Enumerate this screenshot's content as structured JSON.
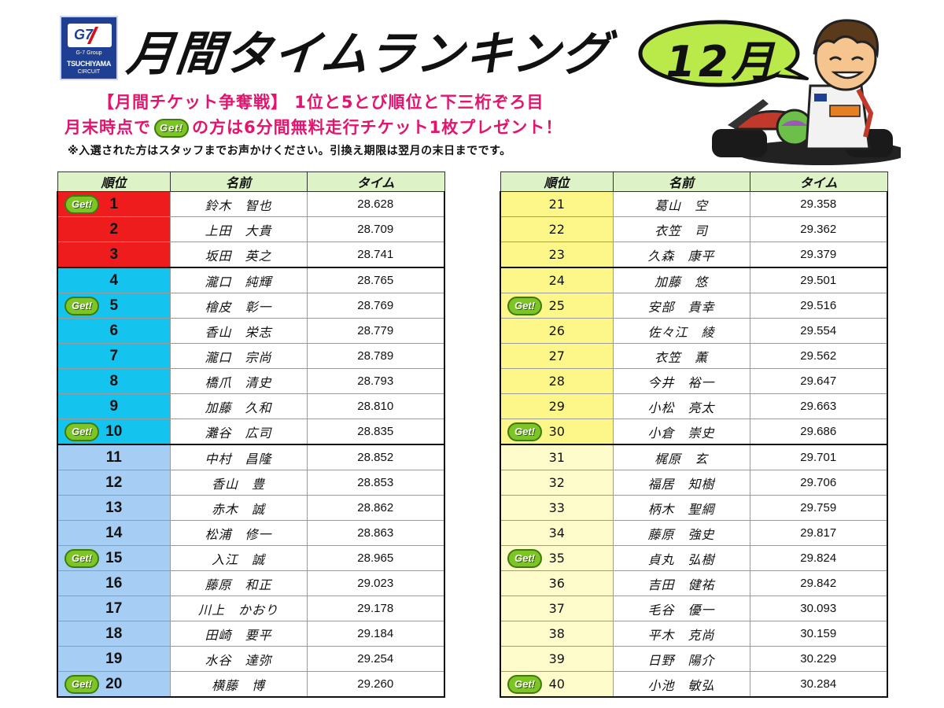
{
  "logo": {
    "group": "G-7 Group",
    "name": "TSUCHIYAMA",
    "circuit": "CIRCUIT",
    "mark": "G7"
  },
  "title": "月間タイムランキング",
  "month": "12月",
  "info": {
    "line1": "【月間チケット争奪戦】 1位と5とび順位と下三桁ぞろ目",
    "line2_before": "月末時点で",
    "line2_after": "の方は6分間無料走行チケット1枚プレゼント！",
    "line3": "※入選された方はスタッフまでお声かけください。引換え期限は翌月の末日までです。"
  },
  "badge_label": "Get!",
  "headers": {
    "rank": "順位",
    "name": "名前",
    "time": "タイム"
  },
  "left_rows": [
    {
      "rank": "1",
      "name": "鈴木　智也",
      "time": "28.628",
      "get": true
    },
    {
      "rank": "2",
      "name": "上田　大貴",
      "time": "28.709",
      "get": false
    },
    {
      "rank": "3",
      "name": "坂田　英之",
      "time": "28.741",
      "get": false
    },
    {
      "rank": "4",
      "name": "瀧口　純輝",
      "time": "28.765",
      "get": false
    },
    {
      "rank": "5",
      "name": "檜皮　彰一",
      "time": "28.769",
      "get": true
    },
    {
      "rank": "6",
      "name": "香山　栄志",
      "time": "28.779",
      "get": false
    },
    {
      "rank": "7",
      "name": "瀧口　宗尚",
      "time": "28.789",
      "get": false
    },
    {
      "rank": "8",
      "name": "橋爪　清史",
      "time": "28.793",
      "get": false
    },
    {
      "rank": "9",
      "name": "加藤　久和",
      "time": "28.810",
      "get": false
    },
    {
      "rank": "10",
      "name": "灘谷　広司",
      "time": "28.835",
      "get": true
    },
    {
      "rank": "11",
      "name": "中村　昌隆",
      "time": "28.852",
      "get": false
    },
    {
      "rank": "12",
      "name": "香山　豊",
      "time": "28.853",
      "get": false
    },
    {
      "rank": "13",
      "name": "赤木　誠",
      "time": "28.862",
      "get": false
    },
    {
      "rank": "14",
      "name": "松浦　修一",
      "time": "28.863",
      "get": false
    },
    {
      "rank": "15",
      "name": "入江　誠",
      "time": "28.965",
      "get": true
    },
    {
      "rank": "16",
      "name": "藤原　和正",
      "time": "29.023",
      "get": false
    },
    {
      "rank": "17",
      "name": "川上　かおり",
      "time": "29.178",
      "get": false
    },
    {
      "rank": "18",
      "name": "田崎　要平",
      "time": "29.184",
      "get": false
    },
    {
      "rank": "19",
      "name": "水谷　達弥",
      "time": "29.254",
      "get": false
    },
    {
      "rank": "20",
      "name": "横藤　博",
      "time": "29.260",
      "get": true
    }
  ],
  "right_rows": [
    {
      "rank": "21",
      "name": "葛山　空",
      "time": "29.358",
      "get": false
    },
    {
      "rank": "22",
      "name": "衣笠　司",
      "time": "29.362",
      "get": false
    },
    {
      "rank": "23",
      "name": "久森　康平",
      "time": "29.379",
      "get": false
    },
    {
      "rank": "24",
      "name": "加藤　悠",
      "time": "29.501",
      "get": false
    },
    {
      "rank": "25",
      "name": "安部　貴幸",
      "time": "29.516",
      "get": true
    },
    {
      "rank": "26",
      "name": "佐々江　綾",
      "time": "29.554",
      "get": false
    },
    {
      "rank": "27",
      "name": "衣笠　薫",
      "time": "29.562",
      "get": false
    },
    {
      "rank": "28",
      "name": "今井　裕一",
      "time": "29.647",
      "get": false
    },
    {
      "rank": "29",
      "name": "小松　亮太",
      "time": "29.663",
      "get": false
    },
    {
      "rank": "30",
      "name": "小倉　崇史",
      "time": "29.686",
      "get": true
    },
    {
      "rank": "31",
      "name": "梶原　玄",
      "time": "29.701",
      "get": false
    },
    {
      "rank": "32",
      "name": "福居　知樹",
      "time": "29.706",
      "get": false
    },
    {
      "rank": "33",
      "name": "柄木　聖綱",
      "time": "29.759",
      "get": false
    },
    {
      "rank": "34",
      "name": "藤原　強史",
      "time": "29.817",
      "get": false
    },
    {
      "rank": "35",
      "name": "貞丸　弘樹",
      "time": "29.824",
      "get": true
    },
    {
      "rank": "36",
      "name": "吉田　健祐",
      "time": "29.842",
      "get": false
    },
    {
      "rank": "37",
      "name": "毛谷　優一",
      "time": "30.093",
      "get": false
    },
    {
      "rank": "38",
      "name": "平木　克尚",
      "time": "30.159",
      "get": false
    },
    {
      "rank": "39",
      "name": "日野　陽介",
      "time": "30.229",
      "get": false
    },
    {
      "rank": "40",
      "name": "小池　敏弘",
      "time": "30.284",
      "get": true
    }
  ],
  "colors": {
    "rank_red": "#ee1c1c",
    "rank_cyan": "#14c4ee",
    "rank_blue": "#a6cdf4",
    "rank_yellow": "#fdf78a",
    "rank_pale_yellow": "#fefccb",
    "header_green": "#ddf2c7",
    "info_pink": "#e4146e",
    "badge_green": "#7dc425"
  },
  "icons": {
    "badge": "get-badge-icon",
    "speech_bubble": "speech-bubble-icon",
    "mascot": "racer-mascot-icon"
  }
}
